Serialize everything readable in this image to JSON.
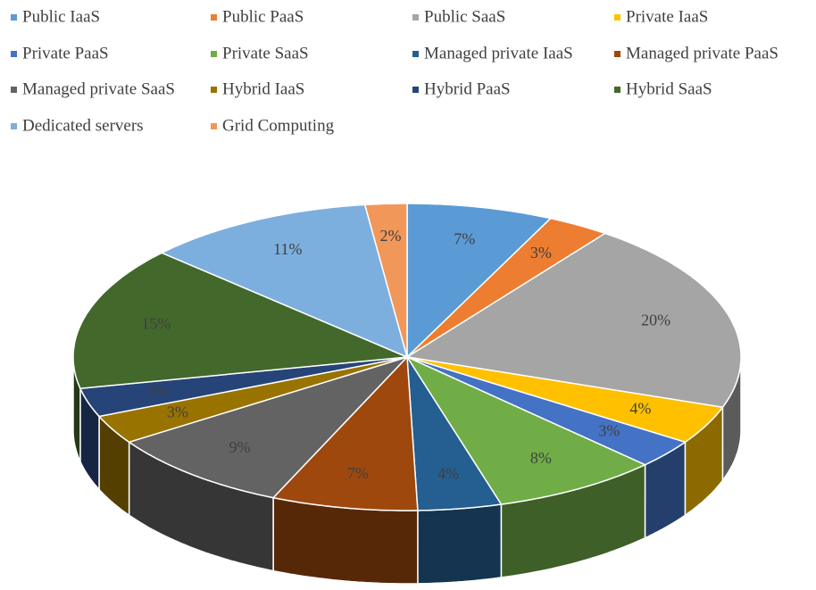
{
  "chart_data": {
    "type": "pie3d",
    "categories": [
      "Public IaaS",
      "Public PaaS",
      "Public SaaS",
      "Private IaaS",
      "Private PaaS",
      "Private SaaS",
      "Managed private IaaS",
      "Managed private PaaS",
      "Managed private SaaS",
      "Hybrid IaaS",
      "Hybrid PaaS",
      "Hybrid SaaS",
      "Dedicated servers",
      "Grid Computing"
    ],
    "values": [
      7,
      3,
      20,
      4,
      3,
      8,
      4,
      7,
      9,
      3,
      3,
      15,
      11,
      2
    ],
    "value_labels": [
      "7%",
      "3%",
      "20%",
      "4%",
      "3%",
      "8%",
      "4%",
      "7%",
      "9%",
      "3%",
      "3%",
      "15%",
      "11%",
      "2%"
    ],
    "colors": [
      "#5b9bd5",
      "#ed7d31",
      "#a5a5a5",
      "#ffc000",
      "#4472c4",
      "#70ad47",
      "#255e91",
      "#9e480e",
      "#636363",
      "#997300",
      "#264478",
      "#43682b",
      "#7cafdd",
      "#f1975a"
    ],
    "legend": "top"
  }
}
